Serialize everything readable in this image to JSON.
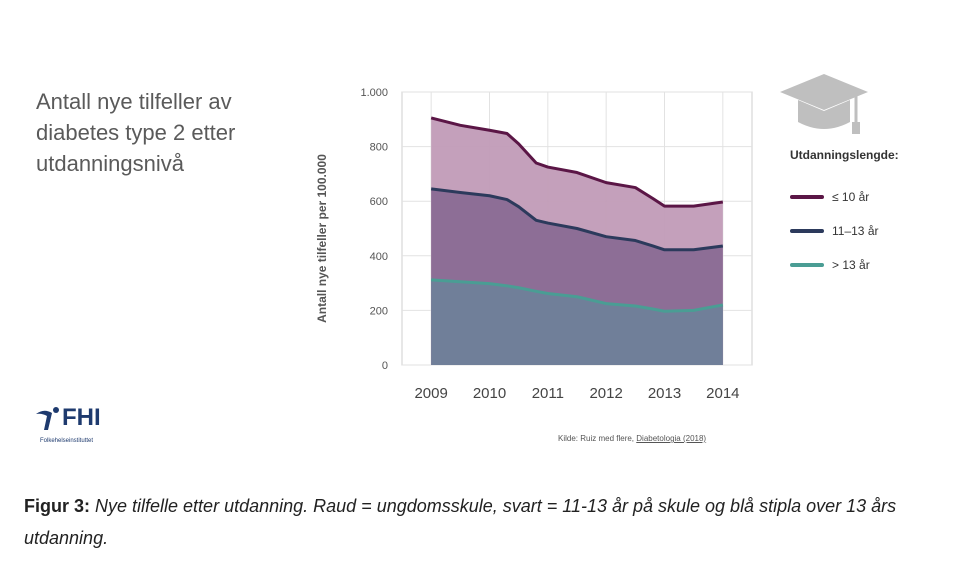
{
  "title_lines": [
    "Antall nye tilfeller av",
    "diabetes type 2 etter",
    "utdanningsnivå"
  ],
  "legend": {
    "title": "Utdanningslengde:",
    "items": [
      {
        "label": "≤ 10 år",
        "color": "#5b1646"
      },
      {
        "label": "11–13 år",
        "color": "#2c3a5c"
      },
      {
        "label": "> 13 år",
        "color": "#4a9d94"
      }
    ]
  },
  "fhi": {
    "logo_text": "FHI",
    "subtitle": "Folkehelseinstituttet"
  },
  "source": {
    "prefix": "Kilde: Ruiz med flere, ",
    "link": "Diabetologia (2018)"
  },
  "caption": {
    "bold": "Figur 3:",
    "text": "Nye tilfelle etter utdanning. Raud = ungdomsskule, svart = 11-13 år på skule og blå stipla over 13 års utdanning."
  },
  "chart_data": {
    "type": "area",
    "ylabel": "Antall nye tilfeller per 100.000",
    "xlabel": "",
    "ylim": [
      0,
      1000
    ],
    "yticks": [
      0,
      200,
      400,
      600,
      800,
      1000
    ],
    "ytick_labels": [
      "0",
      "200",
      "400",
      "600",
      "800",
      "1.000"
    ],
    "xlim": [
      2008.5,
      2014.5
    ],
    "xticks": [
      2009,
      2010,
      2011,
      2012,
      2013,
      2014
    ],
    "grid": true,
    "x": [
      2009,
      2009.5,
      2010,
      2010.3,
      2010.5,
      2010.8,
      2011,
      2011.5,
      2012,
      2012.5,
      2012.8,
      2013,
      2013.5,
      2014
    ],
    "series": [
      {
        "name": "≤ 10 år",
        "line_color": "#5b1646",
        "fill_color": "#c19bb7",
        "values": [
          905,
          878,
          860,
          848,
          810,
          740,
          725,
          705,
          668,
          650,
          610,
          582,
          582,
          597
        ]
      },
      {
        "name": "11–13 år",
        "line_color": "#2c3a5c",
        "fill_color": "#8a6b93",
        "values": [
          645,
          632,
          620,
          606,
          580,
          530,
          520,
          500,
          470,
          456,
          436,
          422,
          422,
          436
        ]
      },
      {
        "name": "> 13 år",
        "line_color": "#4a9d94",
        "fill_color": "#6f7f99",
        "values": [
          312,
          305,
          298,
          290,
          283,
          270,
          262,
          250,
          225,
          216,
          205,
          197,
          200,
          220
        ]
      }
    ]
  }
}
